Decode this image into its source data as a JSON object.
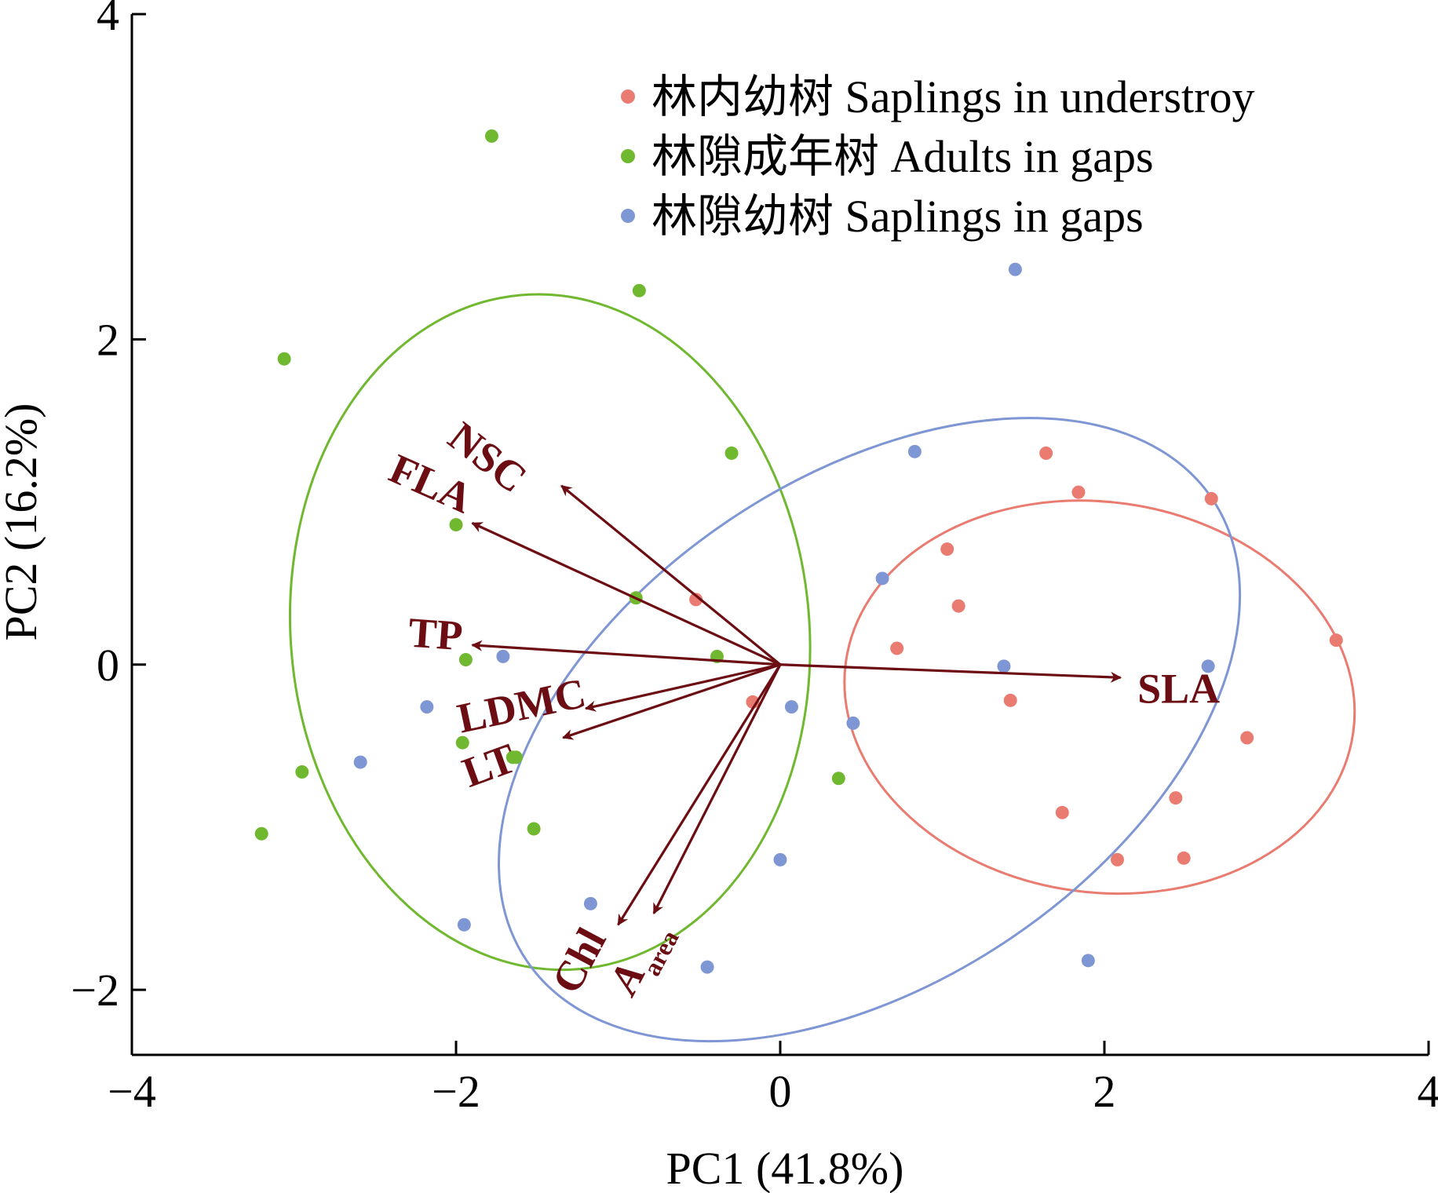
{
  "chart_data": {
    "type": "scatter",
    "xlabel": "PC1 (41.8%)",
    "ylabel": "PC2 (16.2%)",
    "xlim": [
      -4,
      4
    ],
    "ylim": [
      -2.4,
      4
    ],
    "xticks": [
      -4,
      -2,
      0,
      2,
      4
    ],
    "yticks": [
      -2,
      0,
      2,
      4
    ],
    "xtick_labels": [
      "−4",
      "−2",
      "0",
      "2",
      "4"
    ],
    "ytick_labels": [
      "−2",
      "0",
      "2",
      "4"
    ],
    "grid": false,
    "legend_position": "top-right",
    "series": [
      {
        "name": "林内幼树 Saplings in understroy",
        "color": "#ea7b70",
        "points": [
          [
            1.64,
            1.3
          ],
          [
            1.84,
            1.06
          ],
          [
            2.66,
            1.02
          ],
          [
            1.03,
            0.71
          ],
          [
            1.1,
            0.36
          ],
          [
            0.72,
            0.1
          ],
          [
            3.43,
            0.15
          ],
          [
            1.42,
            -0.22
          ],
          [
            2.88,
            -0.45
          ],
          [
            1.74,
            -0.91
          ],
          [
            2.44,
            -0.82
          ],
          [
            2.08,
            -1.2
          ],
          [
            2.49,
            -1.19
          ],
          [
            -0.52,
            0.4
          ],
          [
            -0.17,
            -0.23
          ]
        ],
        "ellipse": {
          "cx": 1.97,
          "cy": -0.2,
          "rx": 1.58,
          "ry": 1.2,
          "angle_deg": -8
        }
      },
      {
        "name": "林隙成年树 Adults in gaps",
        "color": "#6fb830",
        "points": [
          [
            -1.78,
            3.25
          ],
          [
            -0.87,
            2.3
          ],
          [
            -3.06,
            1.88
          ],
          [
            -0.3,
            1.3
          ],
          [
            -2.0,
            0.86
          ],
          [
            -0.89,
            0.41
          ],
          [
            -0.39,
            0.05
          ],
          [
            -1.94,
            0.03
          ],
          [
            -1.63,
            -0.57
          ],
          [
            -1.96,
            -0.48
          ],
          [
            -2.95,
            -0.66
          ],
          [
            -3.2,
            -1.04
          ],
          [
            -1.52,
            -1.01
          ],
          [
            0.36,
            -0.7
          ],
          [
            -1.65,
            -0.57
          ]
        ],
        "ellipse": {
          "cx": -1.42,
          "cy": 0.2,
          "rx": 1.6,
          "ry": 2.08,
          "angle_deg": 5
        }
      },
      {
        "name": "林隙幼树 Saplings in gaps",
        "color": "#7f96d4",
        "points": [
          [
            1.45,
            2.43
          ],
          [
            0.83,
            1.31
          ],
          [
            0.63,
            0.53
          ],
          [
            -1.71,
            0.05
          ],
          [
            1.38,
            -0.01
          ],
          [
            2.64,
            -0.01
          ],
          [
            0.07,
            -0.26
          ],
          [
            0.45,
            -0.36
          ],
          [
            -2.18,
            -0.26
          ],
          [
            -2.59,
            -0.6
          ],
          [
            0.0,
            -1.2
          ],
          [
            -1.17,
            -1.47
          ],
          [
            -1.95,
            -1.6
          ],
          [
            -0.45,
            -1.86
          ],
          [
            1.9,
            -1.82
          ]
        ],
        "ellipse": {
          "cx": 0.55,
          "cy": -0.4,
          "rx": 2.55,
          "ry": 1.55,
          "angle_deg": 34
        }
      }
    ],
    "loadings": {
      "color": "#6b0d12",
      "vectors": [
        {
          "name": "NSC",
          "x": -1.35,
          "y": 1.1
        },
        {
          "name": "FLA",
          "x": -1.9,
          "y": 0.87
        },
        {
          "name": "TP",
          "x": -1.9,
          "y": 0.12
        },
        {
          "name": "LDMC",
          "x": -1.2,
          "y": -0.27
        },
        {
          "name": "LT",
          "x": -1.34,
          "y": -0.45
        },
        {
          "name": "SLA",
          "x": 2.1,
          "y": -0.08
        },
        {
          "name": "Chl",
          "x": -1.0,
          "y": -1.6
        },
        {
          "name": "A",
          "sub": "area",
          "x": -0.78,
          "y": -1.53
        }
      ]
    }
  }
}
